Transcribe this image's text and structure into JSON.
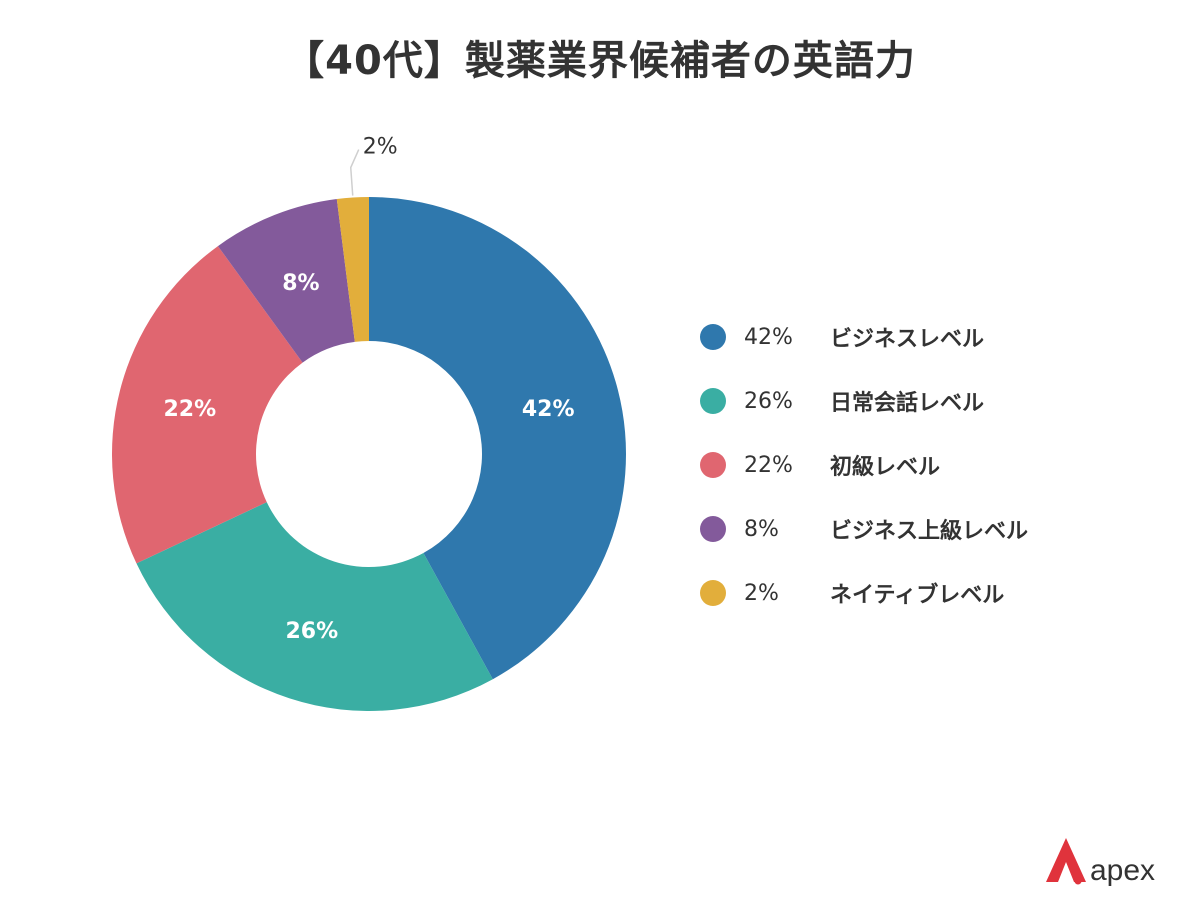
{
  "title": "【40代】製薬業界候補者の英語力",
  "chart_data": {
    "type": "pie",
    "donut": true,
    "title": "【40代】製薬業界候補者の英語力",
    "legend_position": "right",
    "slices": [
      {
        "label": "ビジネスレベル",
        "value": 42,
        "value_label": "42%",
        "color": "#2f78ad"
      },
      {
        "label": "日常会話レベル",
        "value": 26,
        "value_label": "26%",
        "color": "#3aaea3"
      },
      {
        "label": "初級レベル",
        "value": 22,
        "value_label": "22%",
        "color": "#e06670"
      },
      {
        "label": "ビジネス上級レベル",
        "value": 8,
        "value_label": "8%",
        "color": "#835a9b"
      },
      {
        "label": "ネイティブレベル",
        "value": 2,
        "value_label": "2%",
        "color": "#e2ae3b"
      }
    ]
  },
  "legend": [
    {
      "pct": "42%",
      "name": "ビジネスレベル"
    },
    {
      "pct": "26%",
      "name": "日常会話レベル"
    },
    {
      "pct": "22%",
      "name": "初級レベル"
    },
    {
      "pct": "8%",
      "name": "ビジネス上級レベル"
    },
    {
      "pct": "2%",
      "name": "ネイティブレベル"
    }
  ],
  "logo": {
    "text": "apex",
    "color": "#e0333c"
  }
}
